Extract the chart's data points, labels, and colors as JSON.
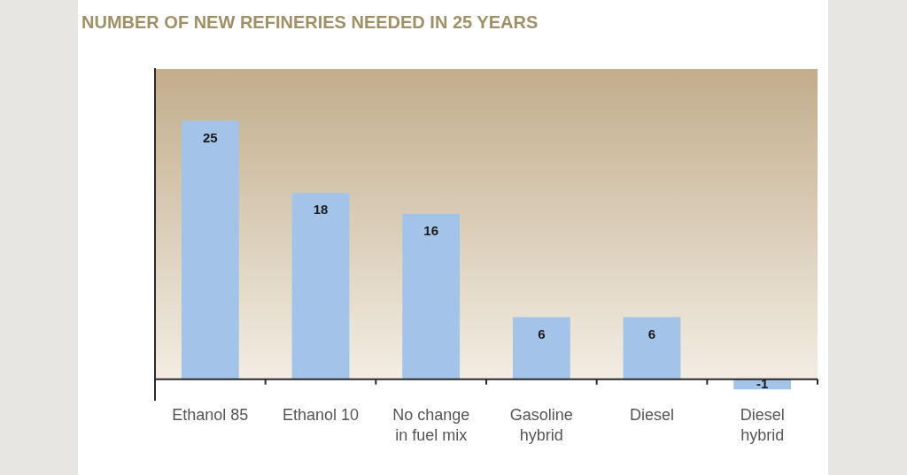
{
  "chart_data": {
    "type": "bar",
    "title": "NUMBER OF NEW REFINERIES NEEDED IN 25 YEARS",
    "categories": [
      "Ethanol 85",
      "Ethanol 10",
      "No change in fuel mix",
      "Gasoline hybrid",
      "Diesel",
      "Diesel hybrid"
    ],
    "values": [
      25,
      18,
      16,
      6,
      6,
      -1
    ],
    "color": "#a3c4e8",
    "ylim": [
      -2,
      30
    ],
    "data_labels": true,
    "tick_labels": "x"
  }
}
